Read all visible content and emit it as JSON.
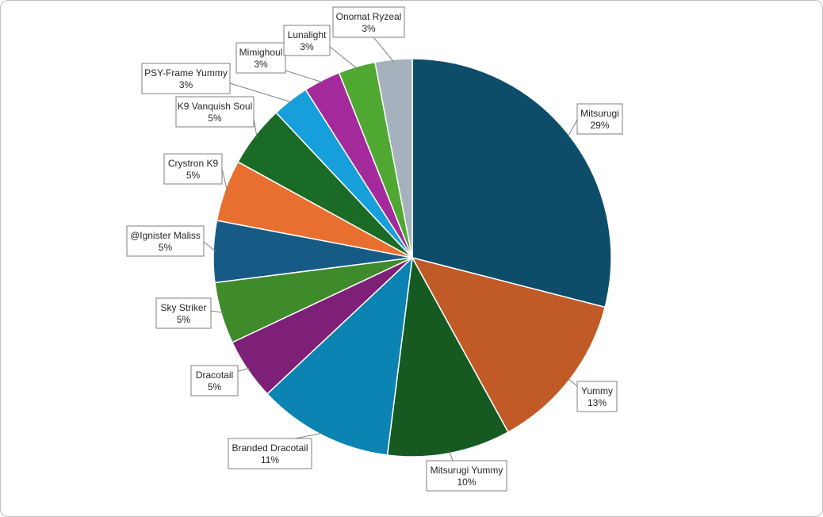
{
  "chart_data": {
    "type": "pie",
    "start_angle_deg": 0,
    "direction": "clockwise",
    "slices": [
      {
        "label": "Mitsurugi",
        "value": 29,
        "display": "29%",
        "color": "#0e4d6a"
      },
      {
        "label": "Yummy",
        "value": 13,
        "display": "13%",
        "color": "#c05a27"
      },
      {
        "label": "Mitsurugi Yummy",
        "value": 10,
        "display": "10%",
        "color": "#165a22"
      },
      {
        "label": "Branded Dracotail",
        "value": 11,
        "display": "11%",
        "color": "#0b83b3"
      },
      {
        "label": "Dracotail",
        "value": 5,
        "display": "5%",
        "color": "#7e2078"
      },
      {
        "label": "Sky Striker",
        "value": 5,
        "display": "5%",
        "color": "#3f8a2a"
      },
      {
        "label": "@Ignister Maliss",
        "value": 5,
        "display": "5%",
        "color": "#165b85"
      },
      {
        "label": "Crystron K9",
        "value": 5,
        "display": "5%",
        "color": "#e86f30"
      },
      {
        "label": "K9 Vanquish Soul",
        "value": 5,
        "display": "5%",
        "color": "#1a6b26"
      },
      {
        "label": "PSY-Frame Yummy",
        "value": 3,
        "display": "3%",
        "color": "#169fdb"
      },
      {
        "label": "Mimighoul",
        "value": 3,
        "display": "3%",
        "color": "#a42a9c"
      },
      {
        "label": "Lunalight",
        "value": 3,
        "display": "3%",
        "color": "#4fa832"
      },
      {
        "label": "Onomat Ryzeal",
        "value": 3,
        "display": "3%",
        "color": "#a5b1bc"
      }
    ]
  }
}
